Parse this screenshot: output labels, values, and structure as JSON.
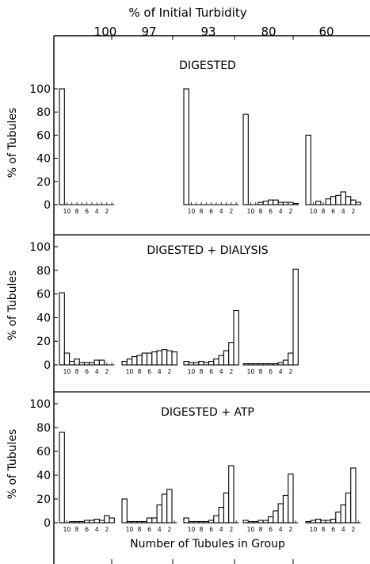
{
  "chart_data": {
    "type": "bar",
    "top_label": "% of Initial Turbidity",
    "turbidity_columns": [
      "100",
      "97",
      "93",
      "80",
      "60"
    ],
    "xlabel": "Number of Tubules in Group",
    "ylabel": "% of Tubules",
    "y_ticks": [
      "100",
      "80",
      "60",
      "40",
      "20",
      "0"
    ],
    "ylim": [
      0,
      100
    ],
    "x_tick_labels": [
      "10",
      "8",
      "6",
      "4",
      "2"
    ],
    "bar_categories": [
      11,
      10,
      9,
      8,
      7,
      6,
      5,
      4,
      3,
      2,
      1
    ],
    "panels": [
      {
        "title": "DIGESTED",
        "groups": [
          {
            "turbidity": "100",
            "values": [
              100,
              0,
              0,
              0,
              0,
              0,
              0,
              0,
              0,
              0,
              0
            ]
          },
          {
            "turbidity": "97",
            "values": null
          },
          {
            "turbidity": "93",
            "values": [
              100,
              0,
              0,
              0,
              0,
              0,
              0,
              0,
              0,
              0,
              0
            ]
          },
          {
            "turbidity": "80",
            "values": [
              78,
              0,
              0,
              2,
              3,
              4,
              4,
              2,
              2,
              2,
              1
            ]
          },
          {
            "turbidity": "60",
            "values": [
              60,
              0,
              3,
              0,
              5,
              7,
              8,
              11,
              7,
              4,
              2
            ]
          }
        ]
      },
      {
        "title": "DIGESTED + DIALYSIS",
        "groups": [
          {
            "turbidity": "100",
            "values": [
              61,
              10,
              3,
              5,
              2,
              2,
              2,
              4,
              4,
              0,
              0
            ]
          },
          {
            "turbidity": "97",
            "values": [
              3,
              5,
              7,
              8,
              10,
              10,
              11,
              12,
              13,
              12,
              11
            ]
          },
          {
            "turbidity": "93",
            "values": [
              3,
              2,
              2,
              3,
              2,
              3,
              5,
              8,
              12,
              19,
              46
            ]
          },
          {
            "turbidity": "80",
            "values": [
              1,
              1,
              1,
              1,
              1,
              1,
              1,
              2,
              4,
              10,
              81
            ]
          },
          {
            "turbidity": "60",
            "values": null
          }
        ]
      },
      {
        "title": "DIGESTED + ATP",
        "groups": [
          {
            "turbidity": "100",
            "values": [
              76,
              0,
              1,
              1,
              1,
              2,
              2,
              3,
              2,
              6,
              4
            ]
          },
          {
            "turbidity": "97",
            "values": [
              20,
              1,
              1,
              1,
              1,
              4,
              4,
              15,
              24,
              28,
              0
            ]
          },
          {
            "turbidity": "93",
            "values": [
              4,
              1,
              1,
              1,
              1,
              2,
              6,
              13,
              25,
              48,
              0
            ]
          },
          {
            "turbidity": "80",
            "values": [
              2,
              1,
              1,
              2,
              2,
              5,
              10,
              16,
              23,
              41,
              0
            ]
          },
          {
            "turbidity": "60",
            "values": [
              1,
              2,
              3,
              2,
              2,
              3,
              9,
              15,
              25,
              46,
              0
            ]
          }
        ]
      }
    ]
  }
}
